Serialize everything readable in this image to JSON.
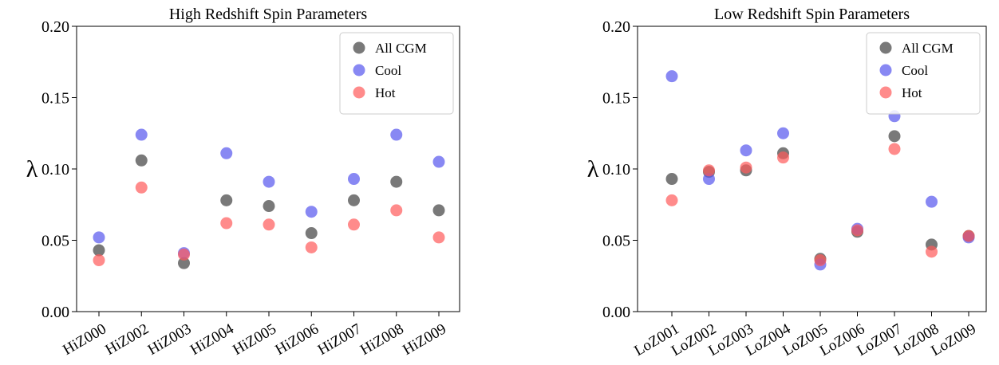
{
  "chart_data": [
    {
      "type": "scatter",
      "title": "High Redshift Spin Parameters",
      "xlabel": "",
      "ylabel": "λ",
      "ylim": [
        0.0,
        0.2
      ],
      "yticks": [
        "0.00",
        "0.05",
        "0.10",
        "0.15",
        "0.20"
      ],
      "categories": [
        "HiZ000",
        "HiZ002",
        "HiZ003",
        "HiZ004",
        "HiZ005",
        "HiZ006",
        "HiZ007",
        "HiZ008",
        "HiZ009"
      ],
      "legend_position": "top-right",
      "grid": false,
      "series": [
        {
          "name": "All CGM",
          "color": "#404040",
          "values": [
            0.043,
            0.106,
            0.034,
            0.078,
            0.074,
            0.055,
            0.078,
            0.091,
            0.071
          ]
        },
        {
          "name": "Cool",
          "color": "#5555ee",
          "values": [
            0.052,
            0.124,
            0.041,
            0.111,
            0.091,
            0.07,
            0.093,
            0.124,
            0.105
          ]
        },
        {
          "name": "Hot",
          "color": "#ff5a5a",
          "values": [
            0.036,
            0.087,
            0.04,
            0.062,
            0.061,
            0.045,
            0.061,
            0.071,
            0.052
          ]
        }
      ]
    },
    {
      "type": "scatter",
      "title": "Low Redshift Spin Parameters",
      "xlabel": "",
      "ylabel": "λ",
      "ylim": [
        0.0,
        0.2
      ],
      "yticks": [
        "0.00",
        "0.05",
        "0.10",
        "0.15",
        "0.20"
      ],
      "categories": [
        "LoZ001",
        "LoZ002",
        "LoZ003",
        "LoZ004",
        "LoZ005",
        "LoZ006",
        "LoZ007",
        "LoZ008",
        "LoZ009"
      ],
      "legend_position": "top-right",
      "grid": false,
      "series": [
        {
          "name": "All CGM",
          "color": "#404040",
          "values": [
            0.093,
            0.098,
            0.099,
            0.111,
            0.037,
            0.056,
            0.123,
            0.047,
            0.053
          ]
        },
        {
          "name": "Cool",
          "color": "#5555ee",
          "values": [
            0.165,
            0.093,
            0.113,
            0.125,
            0.033,
            0.058,
            0.137,
            0.077,
            0.052
          ]
        },
        {
          "name": "Hot",
          "color": "#ff5a5a",
          "values": [
            0.078,
            0.099,
            0.101,
            0.108,
            0.036,
            0.057,
            0.114,
            0.042,
            0.053
          ]
        }
      ]
    }
  ]
}
